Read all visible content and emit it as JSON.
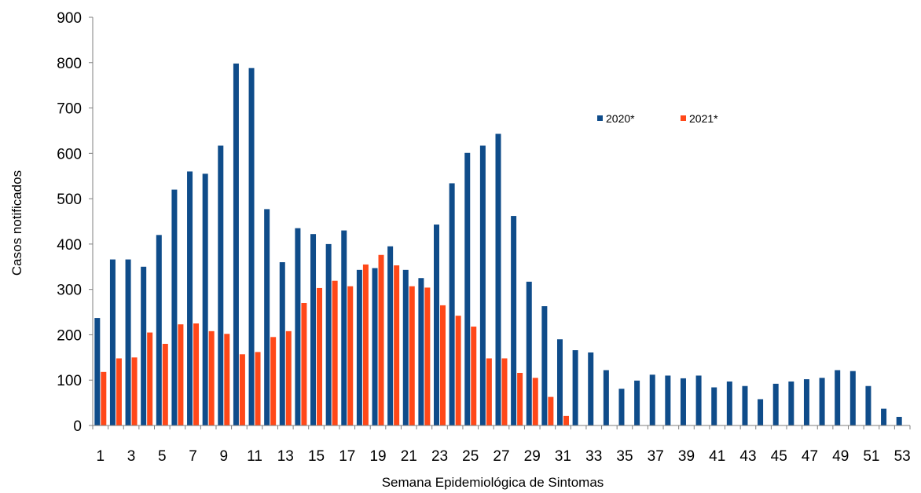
{
  "chart_data": {
    "type": "bar",
    "xlabel": "Semana Epidemiológica de Sintomas",
    "ylabel": "Casos notificados",
    "ylim": [
      0,
      900
    ],
    "yticks": [
      0,
      100,
      200,
      300,
      400,
      500,
      600,
      700,
      800,
      900
    ],
    "grid": false,
    "legend_position": "top-right",
    "x_tick_labels": [
      "1",
      "3",
      "5",
      "7",
      "9",
      "11",
      "13",
      "15",
      "17",
      "19",
      "21",
      "23",
      "25",
      "27",
      "29",
      "31",
      "33",
      "35",
      "37",
      "39",
      "41",
      "43",
      "45",
      "47",
      "49",
      "51",
      "53"
    ],
    "categories": [
      "1",
      "2",
      "3",
      "4",
      "5",
      "6",
      "7",
      "8",
      "9",
      "10",
      "11",
      "12",
      "13",
      "14",
      "15",
      "16",
      "17",
      "18",
      "19",
      "20",
      "21",
      "22",
      "23",
      "24",
      "25",
      "26",
      "27",
      "28",
      "29",
      "30",
      "31",
      "32",
      "33",
      "34",
      "35",
      "36",
      "37",
      "38",
      "39",
      "40",
      "41",
      "42",
      "43",
      "44",
      "45",
      "46",
      "47",
      "48",
      "49",
      "50",
      "51",
      "52",
      "53"
    ],
    "series": [
      {
        "name": "2020*",
        "color": "#0F4C8A",
        "values": [
          237,
          366,
          366,
          350,
          420,
          520,
          560,
          555,
          617,
          798,
          788,
          477,
          360,
          435,
          422,
          400,
          430,
          343,
          347,
          395,
          343,
          325,
          443,
          534,
          601,
          617,
          643,
          462,
          317,
          263,
          190,
          166,
          161,
          122,
          81,
          99,
          112,
          110,
          104,
          110,
          84,
          97,
          87,
          58,
          92,
          97,
          102,
          105,
          122,
          120,
          87,
          37,
          19
        ]
      },
      {
        "name": "2021*",
        "color": "#FF4819",
        "values": [
          118,
          148,
          150,
          205,
          180,
          223,
          225,
          208,
          202,
          157,
          162,
          195,
          208,
          270,
          303,
          319,
          307,
          355,
          376,
          353,
          307,
          304,
          265,
          242,
          218,
          148,
          148,
          116,
          105,
          63,
          21,
          null,
          null,
          null,
          null,
          null,
          null,
          null,
          null,
          null,
          null,
          null,
          null,
          null,
          null,
          null,
          null,
          null,
          null,
          null,
          null,
          null,
          null
        ]
      }
    ]
  }
}
